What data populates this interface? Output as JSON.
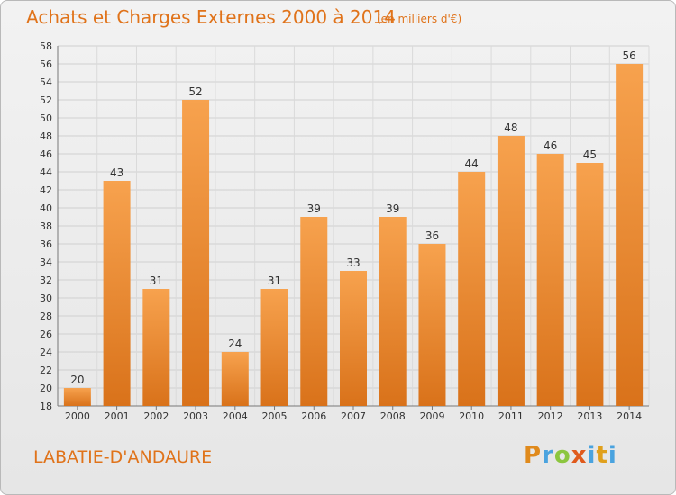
{
  "header": {
    "title": "Achats et Charges Externes 2000 à 2014",
    "subtitle": "(en milliers d'€)"
  },
  "footer": {
    "place": "LABATIE-D'ANDAURE",
    "logo": "Proxiti"
  },
  "colors": {
    "bar_light": "#f7a24e",
    "bar_dark": "#d9721a",
    "title": "#e0731a"
  },
  "chart_data": {
    "type": "bar",
    "categories": [
      "2000",
      "2001",
      "2002",
      "2003",
      "2004",
      "2005",
      "2006",
      "2007",
      "2008",
      "2009",
      "2010",
      "2011",
      "2012",
      "2013",
      "2014"
    ],
    "values": [
      20,
      43,
      31,
      52,
      24,
      31,
      39,
      33,
      39,
      36,
      44,
      48,
      46,
      45,
      56
    ],
    "title": "Achats et Charges Externes 2000 à 2014",
    "subtitle": "(en milliers d'€)",
    "ylim": [
      18,
      58
    ],
    "yticks": [
      18,
      20,
      22,
      24,
      26,
      28,
      30,
      32,
      34,
      36,
      38,
      40,
      42,
      44,
      46,
      48,
      50,
      52,
      54,
      56,
      58
    ],
    "grid": true,
    "data_labels": true
  }
}
